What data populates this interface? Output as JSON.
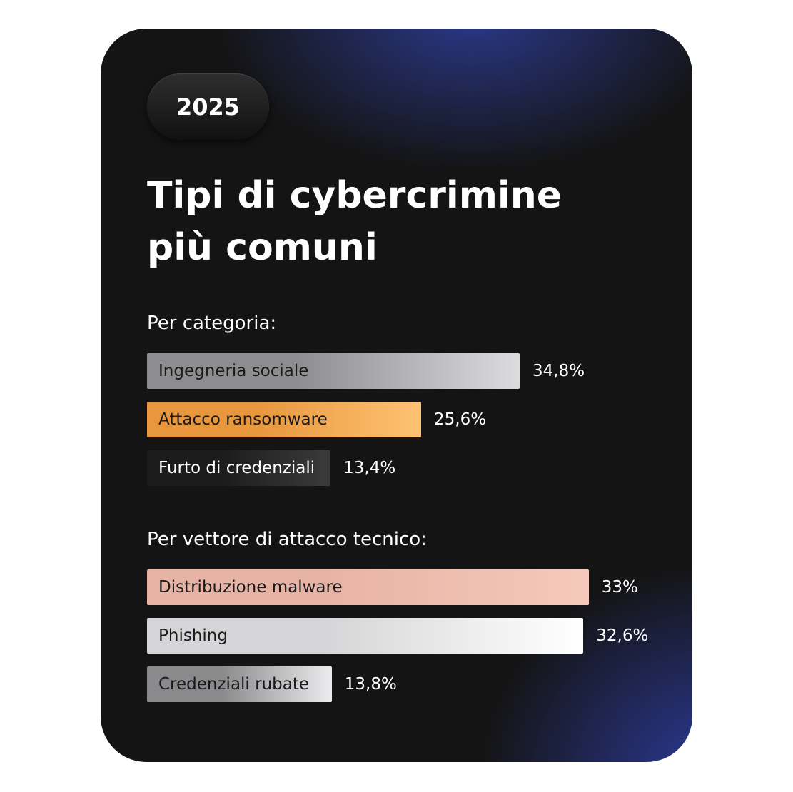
{
  "badge": "2025",
  "title": "Tipi di cybercrimine più comuni",
  "chart_data": [
    {
      "type": "bar",
      "orientation": "horizontal",
      "title": "Per categoria:",
      "categories": [
        "Ingegneria sociale",
        "Attacco ransomware",
        "Furto di credenziali"
      ],
      "values": [
        34.8,
        25.6,
        13.4
      ],
      "value_labels": [
        "34,8%",
        "25,6%",
        "13,4%"
      ],
      "gradients": [
        [
          "#8d8d8f",
          "#dcdcde"
        ],
        [
          "#e8973c",
          "#ffc273"
        ],
        [
          "#1c1c1c",
          "#3b3b3b"
        ]
      ]
    },
    {
      "type": "bar",
      "orientation": "horizontal",
      "title": "Per vettore di attacco tecnico:",
      "categories": [
        "Distribuzione malware",
        "Phishing",
        "Credenziali rubate"
      ],
      "values": [
        33,
        32.6,
        13.8
      ],
      "value_labels": [
        "33%",
        "32,6%",
        "13,8%"
      ],
      "gradients": [
        [
          "#e7b3a4",
          "#f5c9bb"
        ],
        [
          "#d5d5d7",
          "#ffffff"
        ],
        [
          "#8a8a8c",
          "#ececee"
        ]
      ]
    }
  ]
}
